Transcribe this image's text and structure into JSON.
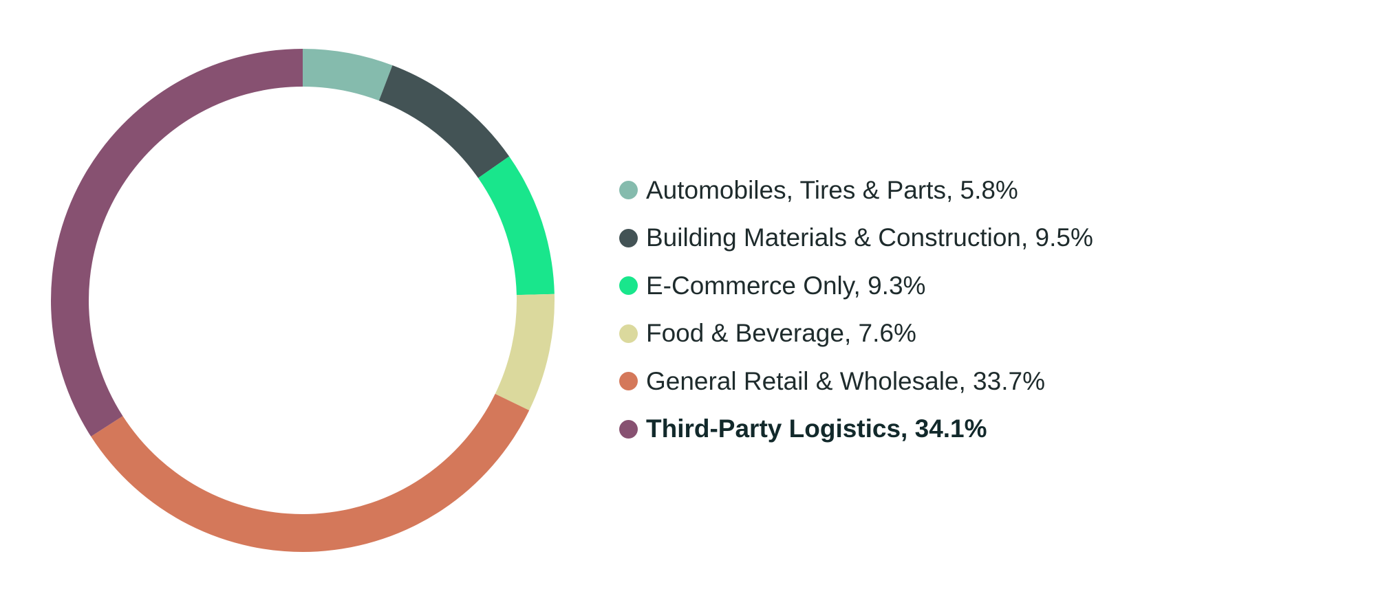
{
  "chart_data": {
    "type": "pie",
    "variant": "donut",
    "title": "",
    "legend_position": "right",
    "slices": [
      {
        "label": "Automobiles, Tires & Parts, 5.8%",
        "value": 5.8,
        "color": "#85bbad"
      },
      {
        "label": "Building Materials & Construction, 9.5%",
        "value": 9.5,
        "color": "#435355"
      },
      {
        "label": "E-Commerce Only, 9.3%",
        "value": 9.3,
        "color": "#19e68c"
      },
      {
        "label": "Food & Beverage, 7.6%",
        "value": 7.6,
        "color": "#dbd99d"
      },
      {
        "label": "General Retail & Wholesale, 33.7%",
        "value": 33.7,
        "color": "#d4785a"
      },
      {
        "label": "Third-Party Logistics, 34.1%",
        "value": 34.1,
        "color": "#875171",
        "emphasized": true
      }
    ]
  }
}
